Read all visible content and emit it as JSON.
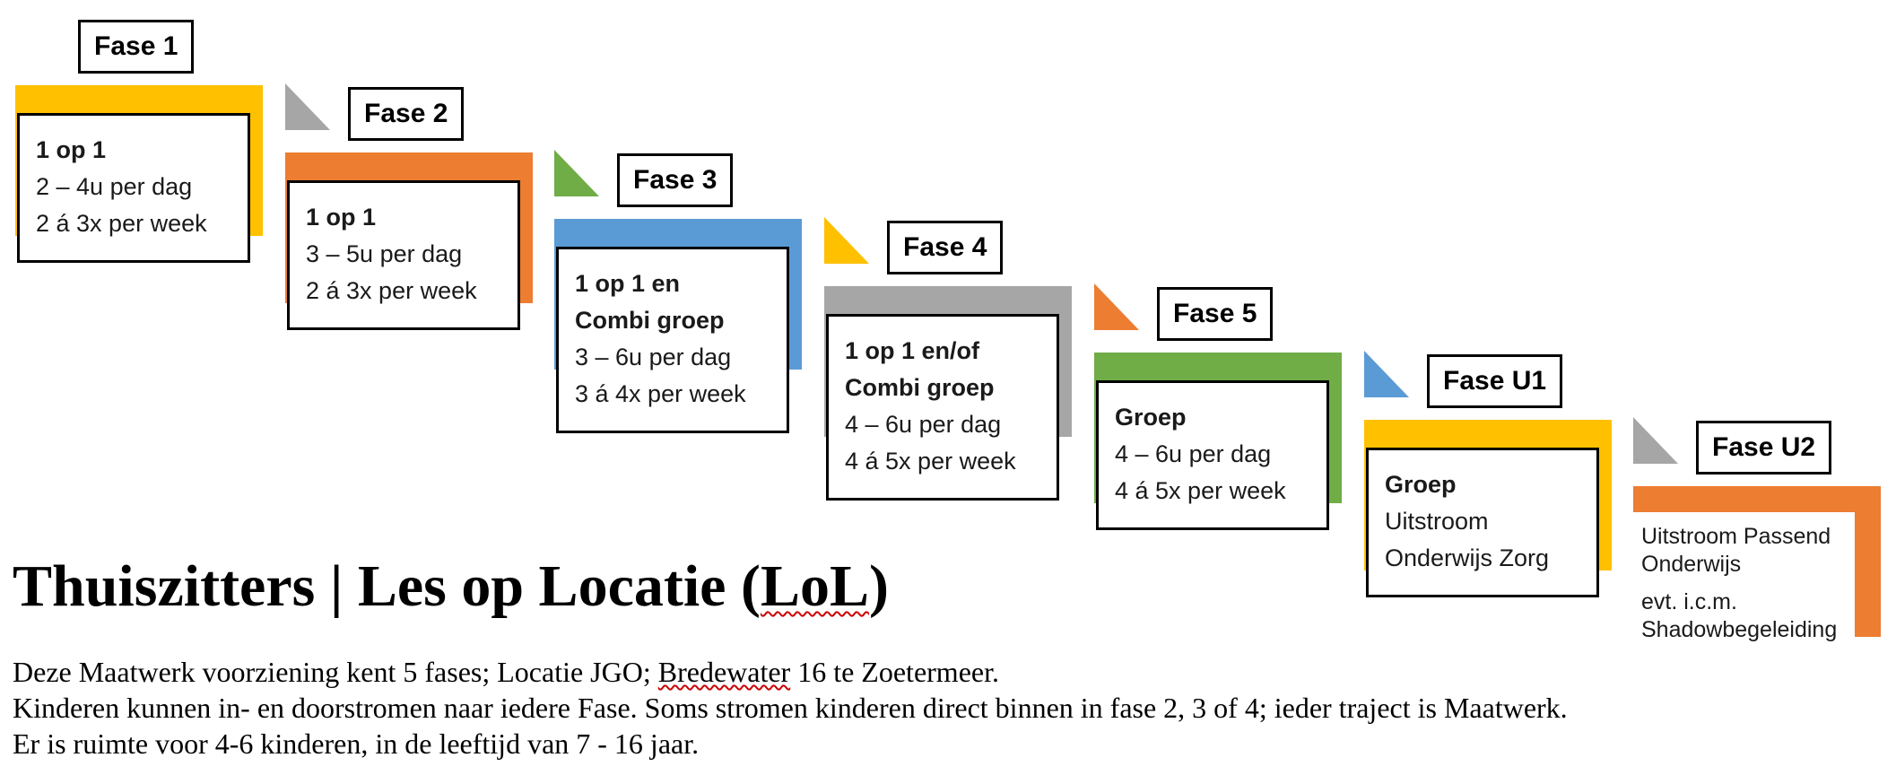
{
  "colors": {
    "gold": "#FFC000",
    "orange": "#ED7D31",
    "blue": "#5B9BD5",
    "gray": "#A6A6A6",
    "green": "#70AD47",
    "spellcheck_red": "#CC0000",
    "card_border": "#000000"
  },
  "diagram": {
    "phases": [
      {
        "id": "fase-1",
        "label": "Fase 1",
        "color": "#FFC000",
        "arrow_color": null,
        "lines": [
          {
            "text": "1 op 1",
            "bold": true
          },
          {
            "text": "2 – 4u per dag",
            "bold": false
          },
          {
            "text": "2 á 3x per week",
            "bold": false
          }
        ]
      },
      {
        "id": "fase-2",
        "label": "Fase 2",
        "color": "#ED7D31",
        "arrow_color": "#A6A6A6",
        "lines": [
          {
            "text": "1 op 1",
            "bold": true
          },
          {
            "text": "3 – 5u per dag",
            "bold": false
          },
          {
            "text": "2 á 3x per week",
            "bold": false
          }
        ]
      },
      {
        "id": "fase-3",
        "label": "Fase 3",
        "color": "#5B9BD5",
        "arrow_color": "#70AD47",
        "lines": [
          {
            "text": "1 op 1 en",
            "bold": true
          },
          {
            "text": "Combi groep",
            "bold": true
          },
          {
            "text": "3 – 6u per dag",
            "bold": false
          },
          {
            "text": "3 á 4x per week",
            "bold": false
          }
        ]
      },
      {
        "id": "fase-4",
        "label": "Fase 4",
        "color": "#A6A6A6",
        "arrow_color": "#FFC000",
        "lines": [
          {
            "text": "1 op 1 en/of",
            "bold": true
          },
          {
            "text": "Combi groep",
            "bold": true
          },
          {
            "text": "4 – 6u per dag",
            "bold": false
          },
          {
            "text": "4 á 5x per week",
            "bold": false
          }
        ]
      },
      {
        "id": "fase-5",
        "label": "Fase 5",
        "color": "#70AD47",
        "arrow_color": "#ED7D31",
        "lines": [
          {
            "text": "Groep",
            "bold": true
          },
          {
            "text": "4 – 6u per dag",
            "bold": false
          },
          {
            "text": "4 á 5x per week",
            "bold": false
          }
        ]
      },
      {
        "id": "fase-u1",
        "label": "Fase U1",
        "color": "#FFC000",
        "arrow_color": "#5B9BD5",
        "lines": [
          {
            "text": "Groep",
            "bold": true
          },
          {
            "text": "Uitstroom",
            "bold": false
          },
          {
            "text": "Onderwijs Zorg",
            "bold": false
          }
        ]
      },
      {
        "id": "fase-u2",
        "label": "Fase U2",
        "color": "#ED7D31",
        "arrow_color": "#A6A6A6",
        "style": "open",
        "paragraphs": [
          "Uitstroom Passend Onderwijs",
          "evt. i.c.m. Shadowbegeleiding"
        ]
      }
    ]
  },
  "title": {
    "text_before": "Thuiszitters | Les op Locatie (",
    "spellcheck_word": "LoL",
    "text_after": ")"
  },
  "paragraphs": {
    "line1_before": "Deze Maatwerk voorziening kent 5 fases; Locatie JGO; ",
    "line1_spellcheck_word": "Bredewater",
    "line1_after": " 16 te Zoetermeer.",
    "line2": "Kinderen kunnen in- en doorstromen naar iedere Fase. Soms stromen kinderen direct binnen in fase 2, 3 of 4; ieder traject is Maatwerk.",
    "line3": "Er is ruimte voor 4-6 kinderen, in de leeftijd van 7 - 16 jaar."
  }
}
